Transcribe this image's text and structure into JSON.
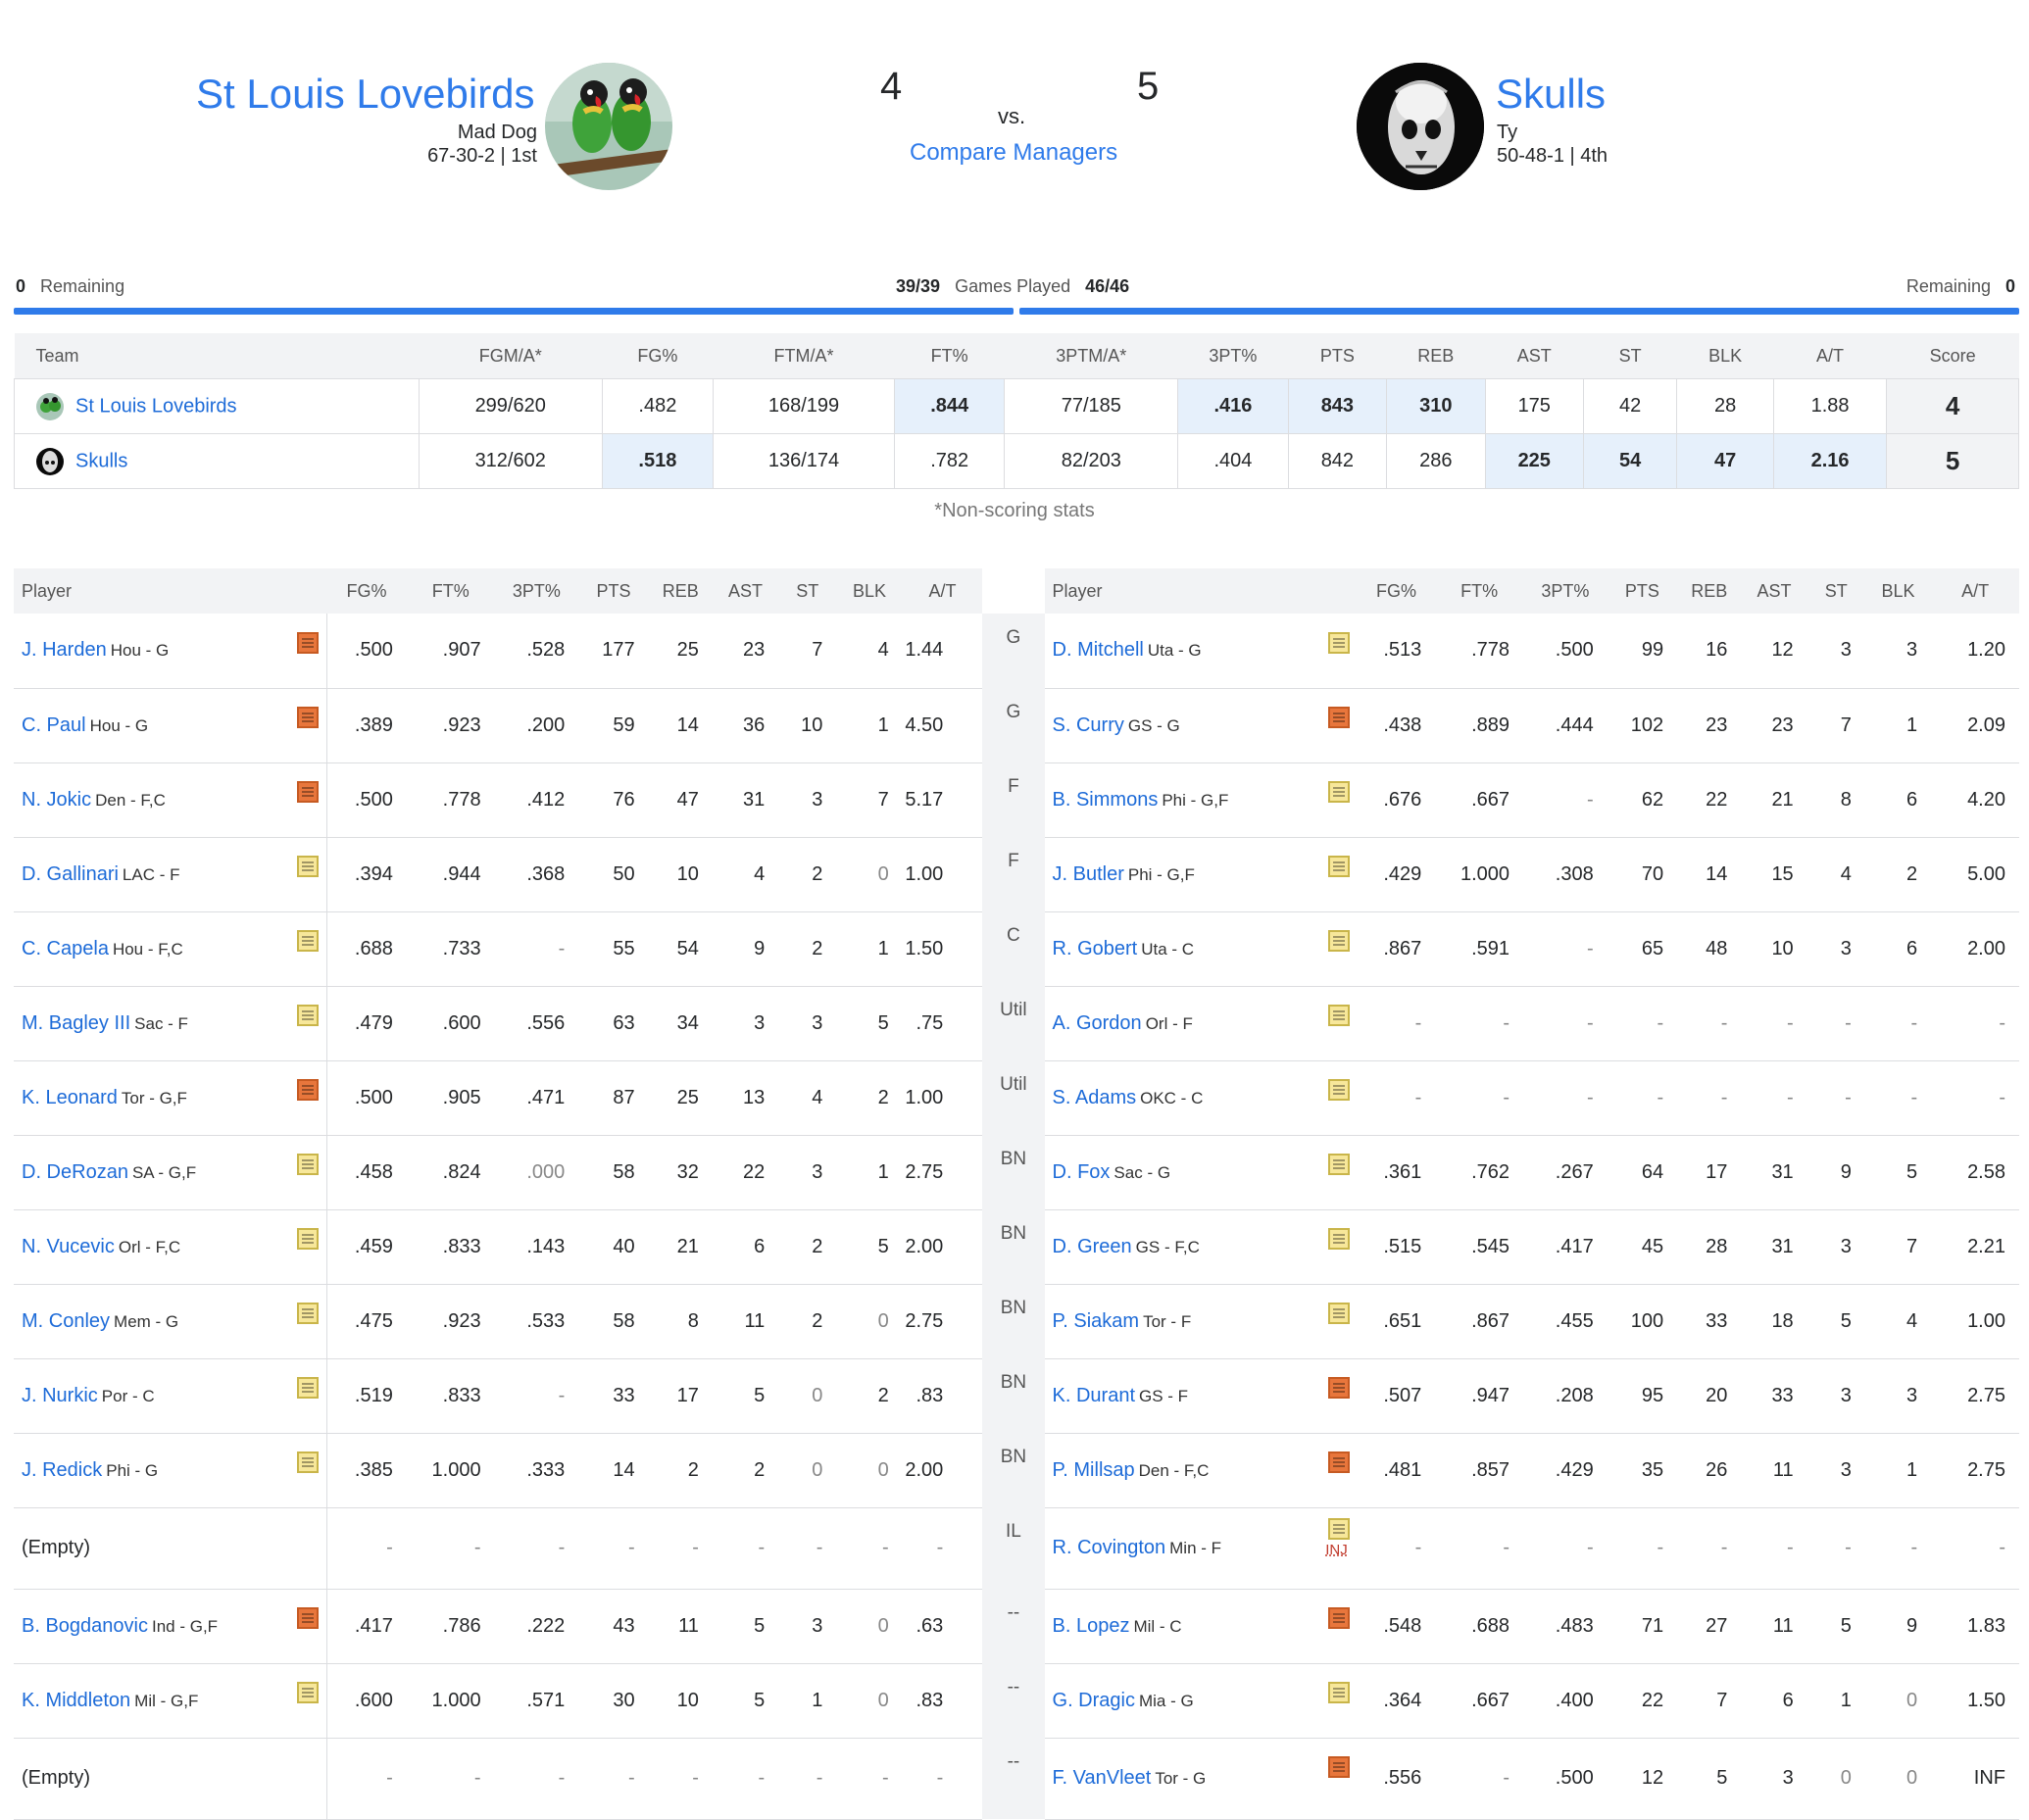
{
  "header": {
    "home": {
      "name": "St Louis Lovebirds",
      "manager": "Mad Dog",
      "record": "67-30-2 | 1st",
      "score": "4"
    },
    "away": {
      "name": "Skulls",
      "manager": "Ty",
      "record": "50-48-1 | 4th",
      "score": "5"
    },
    "vs": "vs.",
    "compare_label": "Compare Managers"
  },
  "games_played": {
    "left_remaining": "0",
    "left_remaining_label": "Remaining",
    "left_played": "39/39",
    "label": "Games Played",
    "right_played": "46/46",
    "right_remaining_label": "Remaining",
    "right_remaining": "0"
  },
  "summary": {
    "headers": [
      "Team",
      "FGM/A*",
      "FG%",
      "FTM/A*",
      "FT%",
      "3PTM/A*",
      "3PT%",
      "PTS",
      "REB",
      "AST",
      "ST",
      "BLK",
      "A/T",
      "Score"
    ],
    "rows": [
      {
        "team": "St Louis Lovebirds",
        "vals": [
          "299/620",
          ".482",
          "168/199",
          ".844",
          "77/185",
          ".416",
          "843",
          "310",
          "175",
          "42",
          "28",
          "1.88"
        ],
        "score": "4",
        "win": [
          false,
          false,
          false,
          true,
          false,
          true,
          true,
          true,
          false,
          false,
          false,
          false
        ]
      },
      {
        "team": "Skulls",
        "vals": [
          "312/602",
          ".518",
          "136/174",
          ".782",
          "82/203",
          ".404",
          "842",
          "286",
          "225",
          "54",
          "47",
          "2.16"
        ],
        "score": "5",
        "win": [
          false,
          true,
          false,
          false,
          false,
          false,
          false,
          false,
          true,
          true,
          true,
          true
        ]
      }
    ],
    "footnote": "*Non-scoring stats"
  },
  "roster": {
    "headers": [
      "Player",
      "FG%",
      "FT%",
      "3PT%",
      "PTS",
      "REB",
      "AST",
      "ST",
      "BLK",
      "A/T"
    ],
    "rows": [
      {
        "pos": "G",
        "l": {
          "name": "J. Harden",
          "team": "Hou - G",
          "note": "new",
          "stats": [
            ".500",
            ".907",
            ".528",
            "177",
            "25",
            "23",
            "7",
            "4",
            "1.44"
          ]
        },
        "r": {
          "name": "D. Mitchell",
          "team": "Uta - G",
          "note": "old",
          "stats": [
            ".513",
            ".778",
            ".500",
            "99",
            "16",
            "12",
            "3",
            "3",
            "1.20"
          ]
        }
      },
      {
        "pos": "G",
        "l": {
          "name": "C. Paul",
          "team": "Hou - G",
          "note": "new",
          "stats": [
            ".389",
            ".923",
            ".200",
            "59",
            "14",
            "36",
            "10",
            "1",
            "4.50"
          ]
        },
        "r": {
          "name": "S. Curry",
          "team": "GS - G",
          "note": "new",
          "stats": [
            ".438",
            ".889",
            ".444",
            "102",
            "23",
            "23",
            "7",
            "1",
            "2.09"
          ]
        }
      },
      {
        "pos": "F",
        "l": {
          "name": "N. Jokic",
          "team": "Den - F,C",
          "note": "new",
          "stats": [
            ".500",
            ".778",
            ".412",
            "76",
            "47",
            "31",
            "3",
            "7",
            "5.17"
          ]
        },
        "r": {
          "name": "B. Simmons",
          "team": "Phi - G,F",
          "note": "old",
          "stats": [
            ".676",
            ".667",
            "-",
            "62",
            "22",
            "21",
            "8",
            "6",
            "4.20"
          ]
        }
      },
      {
        "pos": "F",
        "l": {
          "name": "D. Gallinari",
          "team": "LAC - F",
          "note": "old",
          "stats": [
            ".394",
            ".944",
            ".368",
            "50",
            "10",
            "4",
            "2",
            "0",
            "1.00"
          ]
        },
        "r": {
          "name": "J. Butler",
          "team": "Phi - G,F",
          "note": "old",
          "stats": [
            ".429",
            "1.000",
            ".308",
            "70",
            "14",
            "15",
            "4",
            "2",
            "5.00"
          ]
        }
      },
      {
        "pos": "C",
        "l": {
          "name": "C. Capela",
          "team": "Hou - F,C",
          "note": "old",
          "stats": [
            ".688",
            ".733",
            "-",
            "55",
            "54",
            "9",
            "2",
            "1",
            "1.50"
          ]
        },
        "r": {
          "name": "R. Gobert",
          "team": "Uta - C",
          "note": "old",
          "stats": [
            ".867",
            ".591",
            "-",
            "65",
            "48",
            "10",
            "3",
            "6",
            "2.00"
          ]
        }
      },
      {
        "pos": "Util",
        "l": {
          "name": "M. Bagley III",
          "team": "Sac - F",
          "note": "old",
          "stats": [
            ".479",
            ".600",
            ".556",
            "63",
            "34",
            "3",
            "3",
            "5",
            ".75"
          ]
        },
        "r": {
          "name": "A. Gordon",
          "team": "Orl - F",
          "note": "old",
          "stats": [
            "-",
            "-",
            "-",
            "-",
            "-",
            "-",
            "-",
            "-",
            "-"
          ]
        }
      },
      {
        "pos": "Util",
        "l": {
          "name": "K. Leonard",
          "team": "Tor - G,F",
          "note": "new",
          "stats": [
            ".500",
            ".905",
            ".471",
            "87",
            "25",
            "13",
            "4",
            "2",
            "1.00"
          ]
        },
        "r": {
          "name": "S. Adams",
          "team": "OKC - C",
          "note": "old",
          "stats": [
            "-",
            "-",
            "-",
            "-",
            "-",
            "-",
            "-",
            "-",
            "-"
          ]
        }
      },
      {
        "pos": "BN",
        "l": {
          "name": "D. DeRozan",
          "team": "SA - G,F",
          "note": "old",
          "stats": [
            ".458",
            ".824",
            ".000",
            "58",
            "32",
            "22",
            "3",
            "1",
            "2.75"
          ]
        },
        "r": {
          "name": "D. Fox",
          "team": "Sac - G",
          "note": "old",
          "stats": [
            ".361",
            ".762",
            ".267",
            "64",
            "17",
            "31",
            "9",
            "5",
            "2.58"
          ]
        }
      },
      {
        "pos": "BN",
        "l": {
          "name": "N. Vucevic",
          "team": "Orl - F,C",
          "note": "old",
          "stats": [
            ".459",
            ".833",
            ".143",
            "40",
            "21",
            "6",
            "2",
            "5",
            "2.00"
          ]
        },
        "r": {
          "name": "D. Green",
          "team": "GS - F,C",
          "note": "old",
          "stats": [
            ".515",
            ".545",
            ".417",
            "45",
            "28",
            "31",
            "3",
            "7",
            "2.21"
          ]
        }
      },
      {
        "pos": "BN",
        "l": {
          "name": "M. Conley",
          "team": "Mem - G",
          "note": "old",
          "stats": [
            ".475",
            ".923",
            ".533",
            "58",
            "8",
            "11",
            "2",
            "0",
            "2.75"
          ]
        },
        "r": {
          "name": "P. Siakam",
          "team": "Tor - F",
          "note": "old",
          "stats": [
            ".651",
            ".867",
            ".455",
            "100",
            "33",
            "18",
            "5",
            "4",
            "1.00"
          ]
        }
      },
      {
        "pos": "BN",
        "l": {
          "name": "J. Nurkic",
          "team": "Por - C",
          "note": "old",
          "stats": [
            ".519",
            ".833",
            "-",
            "33",
            "17",
            "5",
            "0",
            "2",
            ".83"
          ]
        },
        "r": {
          "name": "K. Durant",
          "team": "GS - F",
          "note": "new",
          "stats": [
            ".507",
            ".947",
            ".208",
            "95",
            "20",
            "33",
            "3",
            "3",
            "2.75"
          ]
        }
      },
      {
        "pos": "BN",
        "l": {
          "name": "J. Redick",
          "team": "Phi - G",
          "note": "old",
          "stats": [
            ".385",
            "1.000",
            ".333",
            "14",
            "2",
            "2",
            "0",
            "0",
            "2.00"
          ]
        },
        "r": {
          "name": "P. Millsap",
          "team": "Den - F,C",
          "note": "new",
          "stats": [
            ".481",
            ".857",
            ".429",
            "35",
            "26",
            "11",
            "3",
            "1",
            "2.75"
          ]
        }
      },
      {
        "pos": "IL",
        "l": {
          "name": "(Empty)",
          "team": "",
          "note": "",
          "stats": [
            "-",
            "-",
            "-",
            "-",
            "-",
            "-",
            "-",
            "-",
            "-"
          ]
        },
        "r": {
          "name": "R. Covington",
          "team": "Min - F",
          "note": "old",
          "injury": "INJ",
          "stats": [
            "-",
            "-",
            "-",
            "-",
            "-",
            "-",
            "-",
            "-",
            "-"
          ]
        }
      },
      {
        "pos": "--",
        "l": {
          "name": "B. Bogdanovic",
          "team": "Ind - G,F",
          "note": "new",
          "stats": [
            ".417",
            ".786",
            ".222",
            "43",
            "11",
            "5",
            "3",
            "0",
            ".63"
          ]
        },
        "r": {
          "name": "B. Lopez",
          "team": "Mil - C",
          "note": "new",
          "stats": [
            ".548",
            ".688",
            ".483",
            "71",
            "27",
            "11",
            "5",
            "9",
            "1.83"
          ]
        }
      },
      {
        "pos": "--",
        "l": {
          "name": "K. Middleton",
          "team": "Mil - G,F",
          "note": "old",
          "stats": [
            ".600",
            "1.000",
            ".571",
            "30",
            "10",
            "5",
            "1",
            "0",
            ".83"
          ]
        },
        "r": {
          "name": "G. Dragic",
          "team": "Mia - G",
          "note": "old",
          "stats": [
            ".364",
            ".667",
            ".400",
            "22",
            "7",
            "6",
            "1",
            "0",
            "1.50"
          ]
        }
      },
      {
        "pos": "--",
        "l": {
          "name": "(Empty)",
          "team": "",
          "note": "",
          "stats": [
            "-",
            "-",
            "-",
            "-",
            "-",
            "-",
            "-",
            "-",
            "-"
          ]
        },
        "r": {
          "name": "F. VanVleet",
          "team": "Tor - G",
          "note": "new",
          "stats": [
            ".556",
            "-",
            ".500",
            "12",
            "5",
            "3",
            "0",
            "0",
            "INF"
          ]
        }
      }
    ]
  },
  "colors": {
    "link": "#1d6bd8",
    "title": "#2f7bea",
    "highlight": "#e6f0fb",
    "note_new": "#e8763c",
    "note_old": "#f7e79a"
  },
  "icons": {
    "home_logo": "lovebirds-photo",
    "away_logo": "skull-photo",
    "note": "player-note-icon"
  }
}
